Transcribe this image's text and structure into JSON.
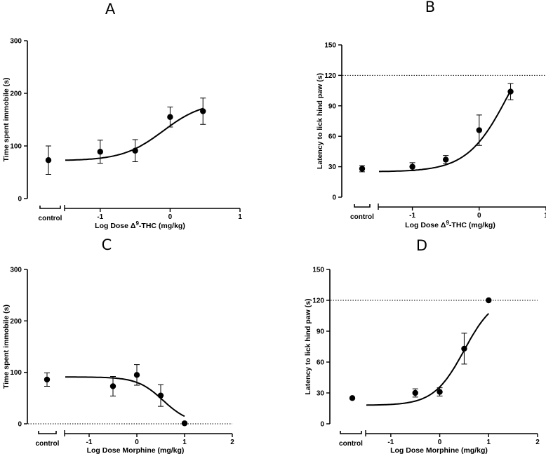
{
  "chart_data": [
    {
      "panel": "A",
      "type": "scatter",
      "ylabel": "Time spent immobile (s)",
      "xlabel_prefix": "Log Dose Δ",
      "xlabel_sup": "9",
      "xlabel_suffix": "-THC (mg/kg)",
      "ylim": [
        0,
        300
      ],
      "yticks": [
        0,
        100,
        200,
        300
      ],
      "xlim": [
        -1.5,
        1
      ],
      "xticks": [
        -1,
        0,
        1
      ],
      "xtick_labels": [
        "-1",
        "0",
        "1"
      ],
      "control_label": "control",
      "control": {
        "y": 73,
        "err": 27
      },
      "points": [
        {
          "x": -1,
          "y": 89,
          "err": 22
        },
        {
          "x": -0.5,
          "y": 91,
          "err": 21
        },
        {
          "x": 0,
          "y": 155,
          "err": 19
        },
        {
          "x": 0.47,
          "y": 166,
          "err": 25
        }
      ],
      "fit": {
        "bottom": 72,
        "top": 185,
        "ec50": -0.1,
        "hill": 1.5,
        "from": -1.5,
        "to": 0.47
      },
      "reference_line": null
    },
    {
      "panel": "B",
      "type": "scatter",
      "ylabel": "Latency to lick hind paw (s)",
      "xlabel_prefix": "Log Dose Δ",
      "xlabel_sup": "9",
      "xlabel_suffix": "-THC (mg/kg)",
      "ylim": [
        0,
        150
      ],
      "yticks": [
        0,
        30,
        60,
        90,
        120,
        150
      ],
      "xlim": [
        -1.5,
        1
      ],
      "xticks": [
        -1,
        0,
        1
      ],
      "xtick_labels": [
        "-1",
        "0",
        "1"
      ],
      "control_label": "control",
      "control": {
        "y": 28,
        "err": 3
      },
      "points": [
        {
          "x": -1,
          "y": 30,
          "err": 4
        },
        {
          "x": -0.5,
          "y": 37,
          "err": 4
        },
        {
          "x": 0,
          "y": 66,
          "err": 15
        },
        {
          "x": 0.47,
          "y": 104,
          "err": 8
        }
      ],
      "fit": {
        "bottom": 25,
        "top": 180,
        "ec50": 0.45,
        "hill": 1.4,
        "from": -1.5,
        "to": 0.47
      },
      "reference_line": 120
    },
    {
      "panel": "C",
      "type": "scatter",
      "ylabel": "Time spent immobile (s)",
      "xlabel_prefix": "Log Dose Morphine (mg/kg)",
      "xlabel_sup": "",
      "xlabel_suffix": "",
      "ylim": [
        0,
        300
      ],
      "yticks": [
        0,
        100,
        200,
        300
      ],
      "xlim": [
        -1.5,
        2
      ],
      "xticks": [
        -1,
        0,
        1,
        2
      ],
      "xtick_labels": [
        "-1",
        "0",
        "1",
        "2"
      ],
      "control_label": "control",
      "control": {
        "y": 86,
        "err": 13
      },
      "points": [
        {
          "x": -0.5,
          "y": 73,
          "err": 19
        },
        {
          "x": 0,
          "y": 95,
          "err": 20
        },
        {
          "x": 0.5,
          "y": 55,
          "err": 21
        },
        {
          "x": 1,
          "y": 1,
          "err": 0
        }
      ],
      "fit": {
        "bottom": 0,
        "top": 91,
        "ec50": 0.55,
        "hill": -1.6,
        "from": -1.5,
        "to": 1
      },
      "reference_line": 0
    },
    {
      "panel": "D",
      "type": "scatter",
      "ylabel": "Latency to lick hind paw (s)",
      "xlabel_prefix": "Log Dose Morphine (mg/kg)",
      "xlabel_sup": "",
      "xlabel_suffix": "",
      "ylim": [
        0,
        150
      ],
      "yticks": [
        0,
        30,
        60,
        90,
        120,
        150
      ],
      "xlim": [
        -1.5,
        2
      ],
      "xticks": [
        -1,
        0,
        1,
        2
      ],
      "xtick_labels": [
        "-1",
        "0",
        "1",
        "2"
      ],
      "control_label": "control",
      "control": {
        "y": 25,
        "err": 0
      },
      "points": [
        {
          "x": -0.5,
          "y": 30,
          "err": 4
        },
        {
          "x": 0,
          "y": 31,
          "err": 4
        },
        {
          "x": 0.5,
          "y": 73,
          "err": 15
        },
        {
          "x": 1,
          "y": 120,
          "err": 0
        }
      ],
      "fit": {
        "bottom": 18,
        "top": 125,
        "ec50": 0.5,
        "hill": 1.4,
        "from": -1.5,
        "to": 1
      },
      "reference_line": 120
    }
  ]
}
